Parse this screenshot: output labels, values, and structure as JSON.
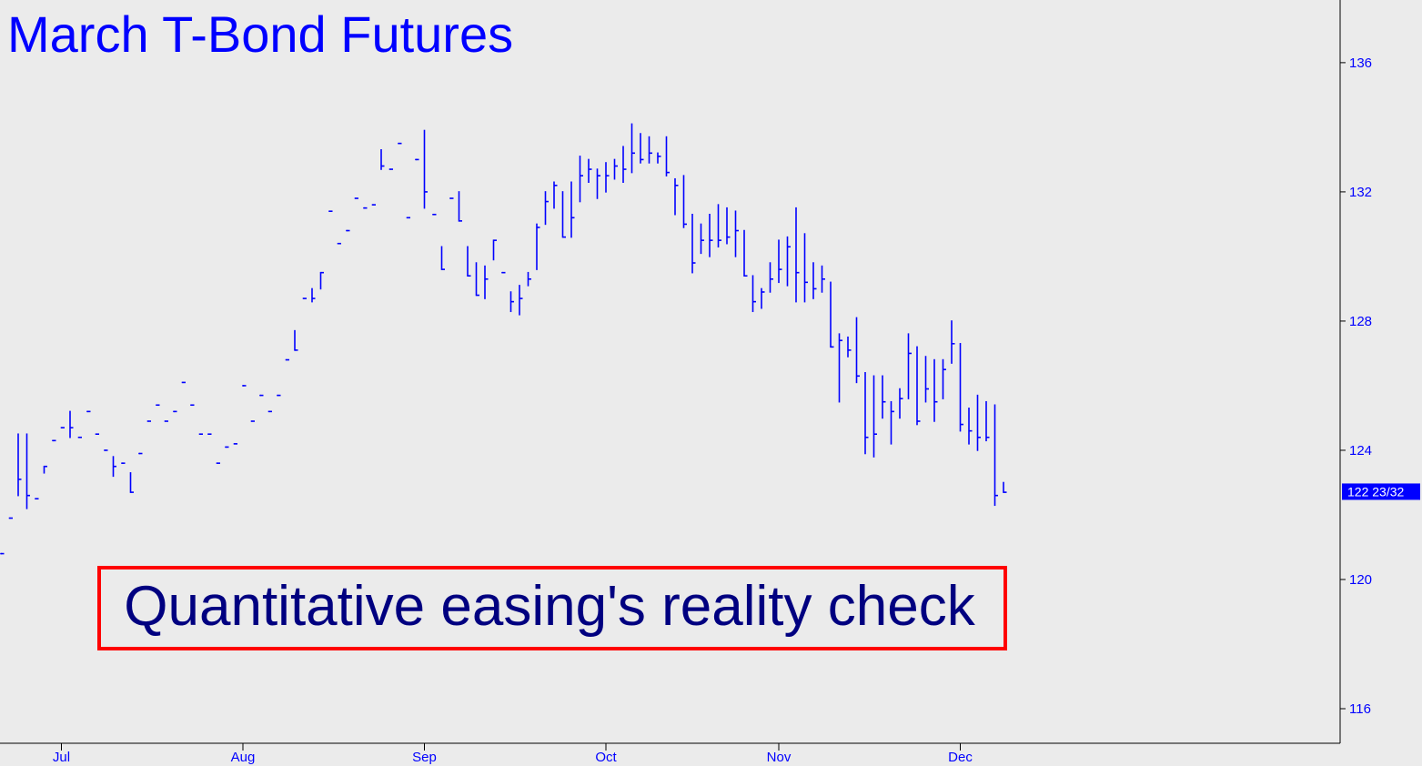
{
  "chart_data": {
    "type": "hlc",
    "title": "March T-Bond Futures",
    "annotation": "Quantitative easing's reality check",
    "color": "#0000ff",
    "ylim": [
      114.93,
      137.94
    ],
    "yticks": [
      116,
      120,
      124,
      128,
      132,
      136
    ],
    "last_price": {
      "value": 122.71875,
      "label": "122 23/32"
    },
    "categories": [
      null,
      null,
      null,
      null,
      null,
      null,
      null,
      "Jul",
      null,
      null,
      null,
      null,
      null,
      null,
      null,
      null,
      null,
      null,
      null,
      null,
      null,
      null,
      null,
      null,
      null,
      null,
      null,
      null,
      "Aug",
      null,
      null,
      null,
      null,
      null,
      null,
      null,
      null,
      null,
      null,
      null,
      null,
      null,
      null,
      null,
      null,
      null,
      null,
      null,
      null,
      "Sep",
      null,
      null,
      null,
      null,
      null,
      null,
      null,
      null,
      null,
      null,
      null,
      null,
      null,
      null,
      null,
      null,
      null,
      null,
      null,
      null,
      "Oct",
      null,
      null,
      null,
      null,
      null,
      null,
      null,
      null,
      null,
      null,
      null,
      null,
      null,
      null,
      null,
      null,
      null,
      null,
      null,
      "Nov",
      null,
      null,
      null,
      null,
      null,
      null,
      null,
      null,
      null,
      null,
      null,
      null,
      null,
      null,
      null,
      null,
      null,
      null,
      null,
      null,
      "Dec",
      null,
      null,
      null,
      null,
      null
    ],
    "high": [
      120.8,
      121.9,
      124.5,
      124.5,
      122.5,
      123.5,
      124.3,
      124.7,
      125.2,
      124.4,
      125.2,
      124.5,
      124.0,
      123.8,
      123.6,
      123.3,
      123.9,
      124.9,
      125.4,
      124.9,
      125.2,
      126.1,
      125.4,
      124.5,
      124.5,
      123.6,
      124.1,
      124.2,
      126.0,
      124.9,
      125.7,
      125.2,
      125.7,
      126.8,
      127.7,
      128.7,
      129.0,
      129.5,
      131.4,
      130.4,
      130.8,
      131.8,
      131.5,
      131.6,
      133.3,
      132.7,
      133.5,
      131.2,
      133.0,
      133.9,
      131.3,
      130.3,
      131.8,
      132.0,
      130.3,
      129.8,
      129.7,
      130.5,
      129.5,
      128.9,
      129.1,
      129.5,
      131.0,
      132.0,
      132.3,
      132.0,
      132.3,
      133.1,
      133.0,
      132.7,
      132.9,
      133.0,
      133.4,
      134.1,
      133.8,
      133.7,
      133.2,
      133.7,
      132.4,
      132.5,
      131.3,
      131.0,
      131.3,
      131.6,
      131.5,
      131.4,
      130.8,
      129.4,
      129.0,
      129.8,
      130.5,
      130.6,
      131.5,
      130.7,
      129.8,
      129.7,
      129.2,
      127.6,
      127.5,
      128.1,
      126.4,
      126.3,
      126.3,
      125.5,
      125.9,
      127.6,
      127.2,
      126.9,
      126.8,
      126.8,
      128.0,
      127.3,
      125.3,
      125.7,
      125.5,
      125.4,
      123.0
    ],
    "low": [
      120.8,
      121.9,
      122.6,
      122.2,
      122.5,
      123.3,
      124.3,
      124.7,
      124.4,
      124.4,
      125.2,
      124.5,
      124.0,
      123.2,
      123.6,
      122.7,
      123.9,
      124.9,
      125.4,
      124.9,
      125.2,
      126.1,
      125.4,
      124.5,
      124.5,
      123.6,
      124.1,
      124.2,
      126.0,
      124.9,
      125.7,
      125.2,
      125.7,
      126.8,
      127.1,
      128.7,
      128.6,
      129.0,
      131.4,
      130.4,
      130.8,
      131.8,
      131.5,
      131.6,
      132.7,
      132.7,
      133.5,
      131.2,
      133.0,
      131.5,
      131.3,
      129.6,
      131.8,
      131.1,
      129.4,
      128.8,
      128.7,
      129.9,
      129.5,
      128.3,
      128.2,
      129.1,
      129.6,
      131.0,
      131.5,
      130.6,
      130.6,
      131.7,
      132.3,
      131.8,
      132.0,
      132.4,
      132.3,
      132.6,
      132.9,
      132.9,
      132.9,
      132.5,
      131.3,
      130.9,
      129.5,
      130.1,
      130.0,
      130.3,
      130.4,
      130.0,
      129.4,
      128.3,
      128.4,
      128.9,
      129.2,
      129.1,
      128.6,
      128.6,
      128.7,
      128.9,
      127.2,
      125.5,
      126.9,
      126.1,
      123.9,
      123.8,
      125.0,
      124.2,
      125.0,
      125.6,
      124.8,
      125.5,
      124.9,
      125.6,
      126.7,
      124.6,
      124.2,
      124.0,
      124.3,
      122.3,
      122.7
    ],
    "close": [
      120.8,
      121.9,
      123.1,
      122.6,
      122.5,
      123.5,
      124.3,
      124.7,
      124.7,
      124.4,
      125.2,
      124.5,
      124.0,
      123.5,
      123.6,
      122.7,
      123.9,
      124.9,
      125.4,
      124.9,
      125.2,
      126.1,
      125.4,
      124.5,
      124.5,
      123.6,
      124.1,
      124.2,
      126.0,
      124.9,
      125.7,
      125.2,
      125.7,
      126.8,
      127.1,
      128.7,
      128.7,
      129.5,
      131.4,
      130.4,
      130.8,
      131.8,
      131.5,
      131.6,
      132.8,
      132.7,
      133.5,
      131.2,
      133.0,
      132.0,
      131.3,
      129.6,
      131.8,
      131.1,
      129.4,
      128.8,
      129.3,
      130.5,
      129.5,
      128.6,
      128.7,
      129.3,
      130.9,
      131.7,
      132.2,
      130.6,
      131.2,
      132.5,
      132.7,
      132.5,
      132.5,
      132.8,
      132.7,
      133.2,
      133.0,
      133.2,
      133.1,
      132.6,
      132.2,
      131.0,
      129.8,
      130.5,
      130.5,
      130.5,
      130.6,
      130.8,
      129.4,
      128.6,
      128.9,
      129.3,
      129.6,
      130.3,
      129.5,
      129.2,
      129.0,
      129.3,
      127.2,
      127.4,
      127.1,
      126.3,
      124.4,
      124.5,
      125.5,
      125.2,
      125.6,
      127.0,
      124.9,
      125.9,
      125.5,
      126.5,
      127.3,
      124.8,
      124.6,
      124.4,
      124.4,
      122.6,
      122.7
    ]
  }
}
